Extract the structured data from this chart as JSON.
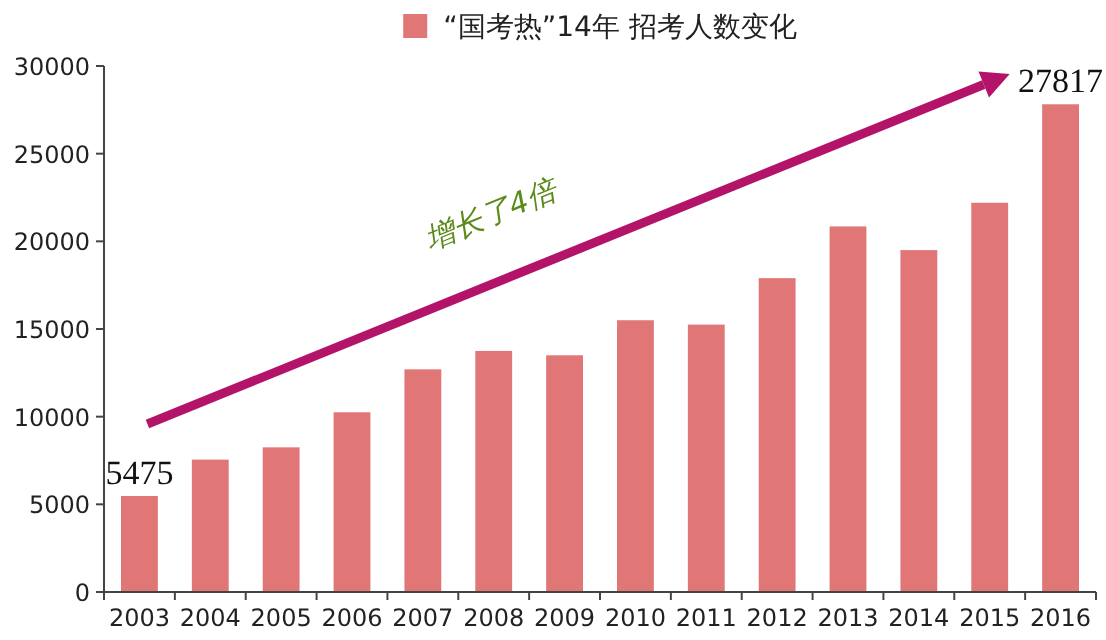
{
  "chart_data": {
    "type": "bar",
    "categories": [
      "2003",
      "2004",
      "2005",
      "2006",
      "2007",
      "2008",
      "2009",
      "2010",
      "2011",
      "2012",
      "2013",
      "2014",
      "2015",
      "2016"
    ],
    "series": [
      {
        "name": "“国考热”14年 招考人数变化",
        "color": "#e07676",
        "values": [
          5475,
          7550,
          8250,
          10250,
          12700,
          13750,
          13500,
          15500,
          15250,
          17900,
          20850,
          19500,
          22200,
          27817
        ]
      }
    ],
    "value_labels": [
      "5475",
      null,
      null,
      null,
      null,
      null,
      null,
      null,
      null,
      null,
      null,
      null,
      null,
      "27817"
    ],
    "ylim": [
      0,
      30000
    ],
    "yticks": [
      0,
      5000,
      10000,
      15000,
      20000,
      25000,
      30000
    ],
    "grid": false,
    "legend": "top",
    "annotations": [
      "增长了4倍"
    ]
  }
}
